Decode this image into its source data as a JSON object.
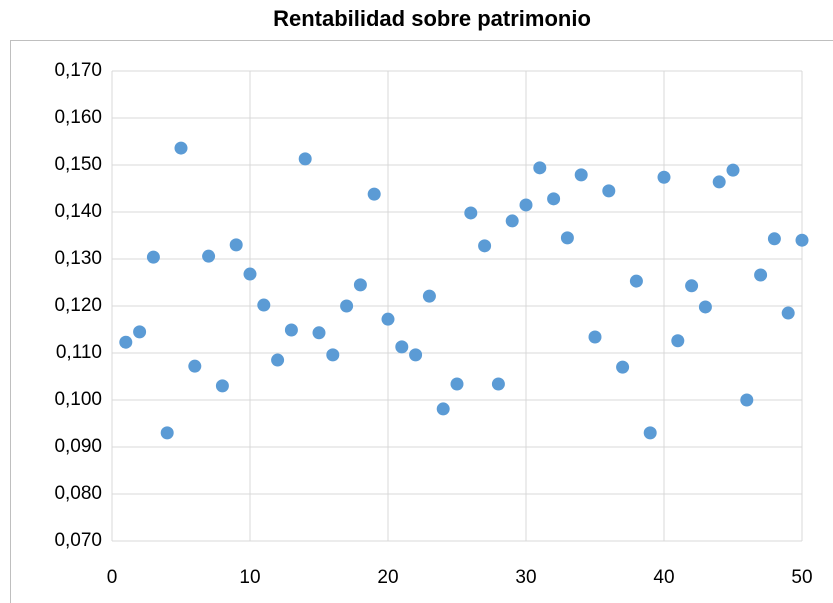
{
  "chart_data": {
    "type": "scatter",
    "title": "Rentabilidad sobre patrimonio",
    "x": [
      1,
      2,
      3,
      4,
      5,
      6,
      7,
      8,
      9,
      10,
      11,
      12,
      13,
      14,
      15,
      16,
      17,
      18,
      19,
      20,
      21,
      22,
      23,
      24,
      25,
      26,
      27,
      28,
      29,
      30,
      31,
      32,
      33,
      34,
      35,
      36,
      37,
      38,
      39,
      40,
      41,
      42,
      43,
      44,
      45,
      46,
      47,
      48,
      49,
      50
    ],
    "values": [
      0.1123,
      0.1145,
      0.1304,
      0.093,
      0.1536,
      0.1072,
      0.1306,
      0.103,
      0.133,
      0.1268,
      0.1202,
      0.1085,
      0.1149,
      0.1513,
      0.1143,
      0.1096,
      0.12,
      0.1245,
      0.1438,
      0.1172,
      0.1113,
      0.1096,
      0.1221,
      0.0981,
      0.1034,
      0.1398,
      0.1328,
      0.1034,
      0.1381,
      0.1415,
      0.1494,
      0.1428,
      0.1345,
      0.1479,
      0.1134,
      0.1445,
      0.107,
      0.1253,
      0.093,
      0.1474,
      0.1126,
      0.1243,
      0.1198,
      0.1464,
      0.1489,
      0.1,
      0.1266,
      0.1343,
      0.1185,
      0.134
    ],
    "color": "#5b9bd5",
    "xlim": [
      0,
      50
    ],
    "xticks": [
      0,
      10,
      20,
      30,
      40,
      50
    ],
    "ylim": [
      0.07,
      0.17
    ],
    "yticks": [
      {
        "value": 0.07,
        "label": "0,070"
      },
      {
        "value": 0.08,
        "label": "0,080"
      },
      {
        "value": 0.09,
        "label": "0,090"
      },
      {
        "value": 0.1,
        "label": "0,100"
      },
      {
        "value": 0.11,
        "label": "0,110"
      },
      {
        "value": 0.12,
        "label": "0,120"
      },
      {
        "value": 0.13,
        "label": "0,130"
      },
      {
        "value": 0.14,
        "label": "0,140"
      },
      {
        "value": 0.15,
        "label": "0,150"
      },
      {
        "value": 0.16,
        "label": "0,160"
      },
      {
        "value": 0.17,
        "label": "0,170"
      }
    ],
    "grid": true
  }
}
